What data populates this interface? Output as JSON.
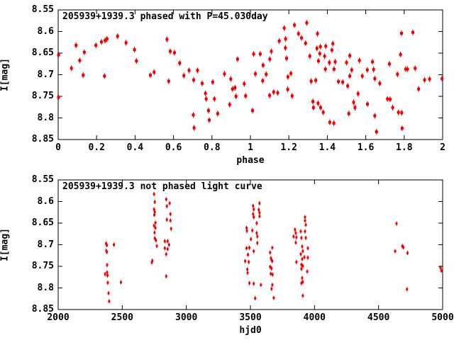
{
  "page": {
    "background": "#ffffff",
    "text_color": "#000000"
  },
  "chart_data": [
    {
      "type": "scatter",
      "panel": "top",
      "title": "205939+1939.3 phased with P=45.030day",
      "xlabel": "phase",
      "ylabel": "I[mag]",
      "xlim": [
        0,
        2
      ],
      "ylim": [
        8.55,
        8.85
      ],
      "y_inverted": true,
      "grid": false,
      "legend": "none",
      "xticks": [
        "0",
        "0.2",
        "0.4",
        "0.6",
        "0.8",
        "1",
        "1.2",
        "1.4",
        "1.6",
        "1.8",
        "2"
      ],
      "xtick_values": [
        0,
        0.2,
        0.4,
        0.6,
        0.8,
        1,
        1.2,
        1.4,
        1.6,
        1.8,
        2
      ],
      "yticks": [
        "8.55",
        "8.6",
        "8.65",
        "8.7",
        "8.75",
        "8.8",
        "8.85"
      ],
      "ytick_values": [
        8.55,
        8.6,
        8.65,
        8.7,
        8.75,
        8.8,
        8.85
      ],
      "marker": {
        "shape": "square-with-errorbar",
        "color": "#ee0000",
        "size": 4,
        "errorbar": 4
      },
      "points": [
        [
          0.002,
          8.654
        ],
        [
          0.002,
          8.752
        ],
        [
          0.069,
          8.685
        ],
        [
          0.093,
          8.632
        ],
        [
          0.112,
          8.667
        ],
        [
          0.136,
          8.648
        ],
        [
          0.13,
          8.701
        ],
        [
          0.196,
          8.632
        ],
        [
          0.225,
          8.624
        ],
        [
          0.244,
          8.621
        ],
        [
          0.241,
          8.703
        ],
        [
          0.254,
          8.617
        ],
        [
          0.309,
          8.611
        ],
        [
          0.353,
          8.626
        ],
        [
          0.397,
          8.642
        ],
        [
          0.407,
          8.668
        ],
        [
          0.48,
          8.701
        ],
        [
          0.499,
          8.694
        ],
        [
          0.566,
          8.618
        ],
        [
          0.583,
          8.646
        ],
        [
          0.605,
          8.649
        ],
        [
          0.632,
          8.673
        ],
        [
          0.575,
          8.715
        ],
        [
          0.654,
          8.702
        ],
        [
          0.681,
          8.69
        ],
        [
          0.705,
          8.712
        ],
        [
          0.725,
          8.69
        ],
        [
          0.703,
          8.793
        ],
        [
          0.707,
          8.823
        ],
        [
          0.749,
          8.72
        ],
        [
          0.766,
          8.743
        ],
        [
          0.77,
          8.756
        ],
        [
          0.782,
          8.783
        ],
        [
          0.786,
          8.805
        ],
        [
          0.804,
          8.717
        ],
        [
          0.813,
          8.756
        ],
        [
          0.83,
          8.79
        ],
        [
          0.865,
          8.698
        ],
        [
          0.898,
          8.71
        ],
        [
          0.907,
          8.733
        ],
        [
          0.892,
          8.769
        ],
        [
          0.92,
          8.73
        ],
        [
          0.925,
          8.75
        ],
        [
          0.933,
          8.664
        ],
        [
          0.968,
          8.721
        ],
        [
          0.975,
          8.749
        ],
        [
          1.011,
          8.783
        ],
        [
          1.017,
          8.652
        ],
        [
          1.026,
          8.698
        ],
        [
          1.051,
          8.652
        ],
        [
          1.066,
          8.678
        ],
        [
          1.082,
          8.699
        ],
        [
          1.064,
          8.714
        ],
        [
          1.101,
          8.664
        ],
        [
          1.109,
          8.646
        ],
        [
          1.121,
          8.74
        ],
        [
          1.1,
          8.748
        ],
        [
          1.142,
          8.742
        ],
        [
          1.15,
          8.622
        ],
        [
          1.176,
          8.592
        ],
        [
          1.183,
          8.617
        ],
        [
          1.182,
          8.638
        ],
        [
          1.188,
          8.662
        ],
        [
          1.195,
          8.705
        ],
        [
          1.194,
          8.734
        ],
        [
          1.211,
          8.697
        ],
        [
          1.217,
          8.749
        ],
        [
          1.229,
          8.585
        ],
        [
          1.25,
          8.605
        ],
        [
          1.266,
          8.615
        ],
        [
          1.287,
          8.627
        ],
        [
          1.293,
          8.58
        ],
        [
          1.309,
          8.657
        ],
        [
          1.316,
          8.715
        ],
        [
          1.325,
          8.762
        ],
        [
          1.328,
          8.776
        ],
        [
          1.34,
          8.713
        ],
        [
          1.349,
          8.605
        ],
        [
          1.346,
          8.639
        ],
        [
          1.364,
          8.635
        ],
        [
          1.392,
          8.634
        ],
        [
          1.429,
          8.628
        ],
        [
          1.424,
          8.643
        ],
        [
          1.361,
          8.651
        ],
        [
          1.386,
          8.657
        ],
        [
          1.354,
          8.668
        ],
        [
          1.39,
          8.687
        ],
        [
          1.435,
          8.687
        ],
        [
          1.411,
          8.672
        ],
        [
          1.441,
          8.67
        ],
        [
          1.5,
          8.672
        ],
        [
          1.517,
          8.656
        ],
        [
          1.527,
          8.689
        ],
        [
          1.567,
          8.667
        ],
        [
          1.582,
          8.703
        ],
        [
          1.608,
          8.689
        ],
        [
          1.635,
          8.67
        ],
        [
          1.641,
          8.688
        ],
        [
          1.647,
          8.709
        ],
        [
          1.673,
          8.72
        ],
        [
          1.458,
          8.716
        ],
        [
          1.48,
          8.717
        ],
        [
          1.506,
          8.726
        ],
        [
          1.517,
          8.703
        ],
        [
          1.352,
          8.766
        ],
        [
          1.365,
          8.776
        ],
        [
          1.379,
          8.787
        ],
        [
          1.413,
          8.81
        ],
        [
          1.434,
          8.812
        ],
        [
          1.512,
          8.79
        ],
        [
          1.537,
          8.764
        ],
        [
          1.544,
          8.776
        ],
        [
          1.56,
          8.744
        ],
        [
          1.609,
          8.768
        ],
        [
          1.647,
          8.795
        ],
        [
          1.656,
          8.832
        ],
        [
          1.713,
          8.756
        ],
        [
          1.727,
          8.757
        ],
        [
          1.74,
          8.776
        ],
        [
          1.723,
          8.675
        ],
        [
          1.765,
          8.699
        ],
        [
          1.781,
          8.653
        ],
        [
          1.786,
          8.604
        ],
        [
          1.808,
          8.687
        ],
        [
          1.817,
          8.687
        ],
        [
          1.77,
          8.787
        ],
        [
          1.787,
          8.788
        ],
        [
          1.789,
          8.824
        ],
        [
          1.845,
          8.602
        ],
        [
          1.857,
          8.685
        ],
        [
          1.875,
          8.733
        ],
        [
          1.906,
          8.712
        ],
        [
          1.932,
          8.71
        ],
        [
          1.997,
          8.709
        ]
      ]
    },
    {
      "type": "scatter",
      "panel": "bottom",
      "title": "205939+1939.3 not phased light curve",
      "xlabel": "hjd0",
      "ylabel": "I[mag]",
      "xlim": [
        2000,
        5000
      ],
      "ylim": [
        8.55,
        8.85
      ],
      "y_inverted": true,
      "grid": false,
      "legend": "none",
      "xticks": [
        "2000",
        "2500",
        "3000",
        "3500",
        "4000",
        "4500",
        "5000"
      ],
      "xtick_values": [
        2000,
        2500,
        3000,
        3500,
        4000,
        4500,
        5000
      ],
      "yticks": [
        "8.55",
        "8.6",
        "8.65",
        "8.7",
        "8.75",
        "8.8",
        "8.85"
      ],
      "ytick_values": [
        8.55,
        8.6,
        8.65,
        8.7,
        8.75,
        8.8,
        8.85
      ],
      "marker": {
        "shape": "dot-with-errorbar",
        "color": "#ee0000",
        "size": 3,
        "errorbar": 3
      },
      "points": [
        [
          2374,
          8.697
        ],
        [
          2380,
          8.701
        ],
        [
          2435,
          8.7
        ],
        [
          2376,
          8.714
        ],
        [
          2380,
          8.717
        ],
        [
          2382,
          8.747
        ],
        [
          2366,
          8.768
        ],
        [
          2382,
          8.764
        ],
        [
          2385,
          8.771
        ],
        [
          2387,
          8.788
        ],
        [
          2490,
          8.787
        ],
        [
          2393,
          8.812
        ],
        [
          2398,
          8.831
        ],
        [
          2748,
          8.583
        ],
        [
          2754,
          8.601
        ],
        [
          2843,
          8.595
        ],
        [
          2870,
          8.604
        ],
        [
          2848,
          8.611
        ],
        [
          2748,
          8.618
        ],
        [
          2754,
          8.624
        ],
        [
          2750,
          8.631
        ],
        [
          2876,
          8.629
        ],
        [
          2848,
          8.642
        ],
        [
          2876,
          8.644
        ],
        [
          2759,
          8.649
        ],
        [
          2748,
          8.656
        ],
        [
          2759,
          8.661
        ],
        [
          2881,
          8.663
        ],
        [
          2752,
          8.672
        ],
        [
          2754,
          8.685
        ],
        [
          2832,
          8.692
        ],
        [
          2854,
          8.692
        ],
        [
          2763,
          8.69
        ],
        [
          2865,
          8.7
        ],
        [
          2770,
          8.703
        ],
        [
          2832,
          8.708
        ],
        [
          2854,
          8.71
        ],
        [
          2843,
          8.722
        ],
        [
          2735,
          8.737
        ],
        [
          2731,
          8.741
        ],
        [
          2843,
          8.773
        ],
        [
          3571,
          8.604
        ],
        [
          3521,
          8.61
        ],
        [
          3526,
          8.618
        ],
        [
          3565,
          8.619
        ],
        [
          3571,
          8.626
        ],
        [
          3521,
          8.629
        ],
        [
          3526,
          8.636
        ],
        [
          3571,
          8.634
        ],
        [
          3549,
          8.65
        ],
        [
          3470,
          8.661
        ],
        [
          3473,
          8.668
        ],
        [
          3515,
          8.667
        ],
        [
          3549,
          8.673
        ],
        [
          3554,
          8.681
        ],
        [
          3504,
          8.687
        ],
        [
          3554,
          8.696
        ],
        [
          3470,
          8.708
        ],
        [
          3492,
          8.707
        ],
        [
          3526,
          8.715
        ],
        [
          3481,
          8.723
        ],
        [
          3459,
          8.738
        ],
        [
          3487,
          8.74
        ],
        [
          3476,
          8.757
        ],
        [
          3478,
          8.765
        ],
        [
          3492,
          8.789
        ],
        [
          3526,
          8.79
        ],
        [
          3582,
          8.793
        ],
        [
          3537,
          8.824
        ],
        [
          3671,
          8.707
        ],
        [
          3654,
          8.718
        ],
        [
          3660,
          8.731
        ],
        [
          3665,
          8.735
        ],
        [
          3670,
          8.738
        ],
        [
          3654,
          8.751
        ],
        [
          3665,
          8.755
        ],
        [
          3659,
          8.767
        ],
        [
          3673,
          8.769
        ],
        [
          3671,
          8.793
        ],
        [
          3665,
          8.802
        ],
        [
          3682,
          8.823
        ],
        [
          3926,
          8.636
        ],
        [
          3926,
          8.644
        ],
        [
          3932,
          8.654
        ],
        [
          3848,
          8.665
        ],
        [
          3854,
          8.673
        ],
        [
          3893,
          8.669
        ],
        [
          3926,
          8.669
        ],
        [
          3837,
          8.681
        ],
        [
          3859,
          8.683
        ],
        [
          3898,
          8.684
        ],
        [
          3932,
          8.684
        ],
        [
          3854,
          8.695
        ],
        [
          3904,
          8.704
        ],
        [
          3948,
          8.708
        ],
        [
          3909,
          8.715
        ],
        [
          3893,
          8.722
        ],
        [
          3921,
          8.729
        ],
        [
          3904,
          8.733
        ],
        [
          3948,
          8.73
        ],
        [
          3859,
          8.74
        ],
        [
          3898,
          8.746
        ],
        [
          3909,
          8.749
        ],
        [
          3898,
          8.756
        ],
        [
          3943,
          8.762
        ],
        [
          3904,
          8.777
        ],
        [
          3909,
          8.786
        ],
        [
          3898,
          8.789
        ],
        [
          3909,
          8.818
        ],
        [
          4640,
          8.651
        ],
        [
          4685,
          8.703
        ],
        [
          4694,
          8.706
        ],
        [
          4629,
          8.715
        ],
        [
          4726,
          8.719
        ],
        [
          4722,
          8.803
        ],
        [
          4983,
          8.753
        ],
        [
          4990,
          8.76
        ]
      ]
    }
  ]
}
